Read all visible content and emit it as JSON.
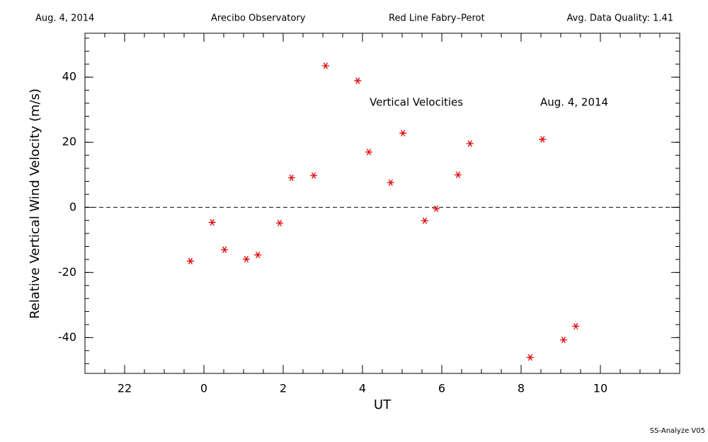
{
  "chart_data": {
    "type": "scatter",
    "header": [
      "Aug. 4, 2014",
      "Arecibo Observatory",
      "Red Line Fabry–Perot",
      "Avg. Data Quality: 1.41"
    ],
    "annotations": [
      "Vertical Velocities",
      "Aug. 4, 2014"
    ],
    "xlabel": "UT",
    "ylabel": "Relative Vertical Wind Velocity (m/s)",
    "footer": "SS-Analyze V05",
    "x": [
      -0.34,
      0.21,
      0.52,
      1.07,
      1.36,
      1.91,
      2.21,
      2.77,
      3.07,
      3.88,
      4.16,
      4.71,
      5.02,
      5.57,
      5.86,
      6.41,
      6.71,
      8.23,
      8.54,
      9.07,
      9.38
    ],
    "values": [
      -16.5,
      -4.6,
      -13.0,
      -15.9,
      -14.6,
      -4.8,
      9.1,
      9.8,
      43.5,
      38.9,
      17.0,
      7.6,
      22.8,
      -4.1,
      -0.4,
      10.0,
      19.6,
      -46.1,
      20.9,
      -40.7,
      -36.5
    ],
    "color": "#e00000",
    "xlim": [
      -3,
      12
    ],
    "ylim": [
      -51,
      53.5
    ],
    "xticks": [
      {
        "value": -2,
        "label": "22"
      },
      0,
      2,
      4,
      6,
      8,
      10
    ],
    "yticks": [
      -40,
      -20,
      0,
      20,
      40
    ],
    "xminor": 0.5,
    "yminor": 4,
    "hline": 0
  }
}
